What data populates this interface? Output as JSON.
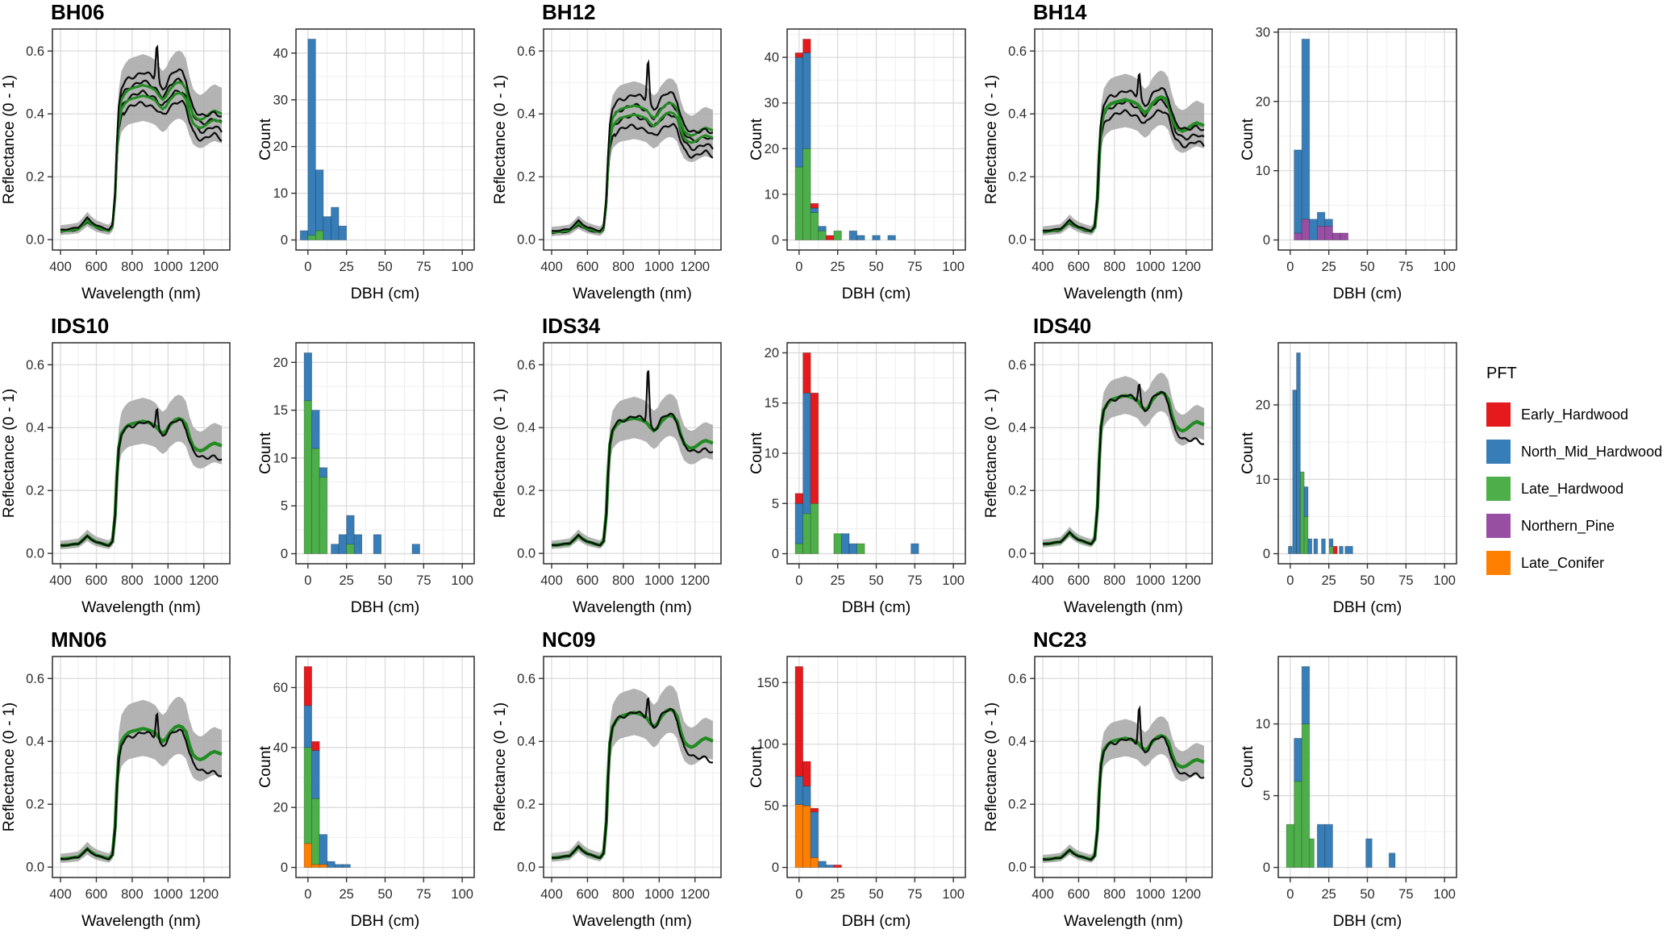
{
  "pft_legend": {
    "title": "PFT",
    "items": [
      {
        "key": "r",
        "label": "Early_Hardwood",
        "color": "#E41A1C"
      },
      {
        "key": "b",
        "label": "North_Mid_Hardwood",
        "color": "#377EB8"
      },
      {
        "key": "g",
        "label": "Late_Hardwood",
        "color": "#4DAF4A"
      },
      {
        "key": "p",
        "label": "Northern_Pine",
        "color": "#984EA3"
      },
      {
        "key": "o",
        "label": "Late_Conifer",
        "color": "#FF7F00"
      }
    ]
  },
  "axes": {
    "spectra": {
      "xlabel": "Wavelength (nm)",
      "ylabel": "Reflectance (0 - 1)",
      "xticks": [
        400,
        600,
        800,
        1000,
        1200
      ],
      "xminor": [
        500,
        700,
        900,
        1100,
        1300
      ],
      "yticks": [
        0.0,
        0.2,
        0.4,
        0.6
      ],
      "yminor": [
        0.1,
        0.3,
        0.5
      ],
      "xrange": [
        355,
        1345
      ],
      "yrange": [
        -0.033,
        0.67
      ]
    },
    "histogram": {
      "xlabel": "DBH (cm)",
      "ylabel": "Count",
      "xticks": [
        0,
        25,
        50,
        75,
        100
      ],
      "xminor": [
        12.5,
        37.5,
        62.5,
        87.5
      ],
      "xrange": [
        -7.75,
        107.75
      ]
    }
  },
  "spectra_base": {
    "wavelengths": [
      400,
      450,
      500,
      530,
      550,
      570,
      600,
      640,
      670,
      690,
      705,
      715,
      725,
      740,
      760,
      780,
      800,
      830,
      860,
      890,
      910,
      930,
      950,
      970,
      990,
      1010,
      1040,
      1060,
      1080,
      1100,
      1120,
      1140,
      1160,
      1180,
      1200,
      1220,
      1240,
      1260,
      1280,
      1300
    ],
    "gnorm": [
      0.06,
      0.066,
      0.075,
      0.11,
      0.135,
      0.112,
      0.088,
      0.072,
      0.062,
      0.09,
      0.3,
      0.6,
      0.82,
      0.93,
      0.97,
      0.995,
      1.005,
      1.015,
      1.025,
      1.015,
      1.005,
      0.99,
      0.955,
      0.93,
      0.95,
      0.995,
      1.035,
      1.045,
      1.035,
      1.0,
      0.9,
      0.83,
      0.805,
      0.795,
      0.805,
      0.825,
      0.845,
      0.855,
      0.845,
      0.835
    ]
  },
  "chart_data": [
    {
      "site": "BH06",
      "spectra": {
        "type": "line",
        "plateau": 0.47,
        "ribbon_frac": 0.2,
        "black_lines": [
          1.1,
          1.04,
          0.97,
          0.9
        ],
        "green_lines": [
          1.02,
          0.95
        ],
        "spike_nm": 938,
        "spike_peak": 0.63,
        "end_drop": 0.1
      },
      "histogram": {
        "type": "bar",
        "ymax": 43,
        "yticks": [
          0,
          10,
          20,
          30,
          40
        ],
        "bars": [
          {
            "c": -2.5,
            "b": 2
          },
          {
            "c": 2.5,
            "g": 1,
            "b": 42
          },
          {
            "c": 7.5,
            "g": 2,
            "b": 13
          },
          {
            "c": 12.5,
            "b": 5
          },
          {
            "c": 17.5,
            "b": 7
          },
          {
            "c": 22.5,
            "b": 3
          }
        ]
      }
    },
    {
      "site": "BH12",
      "spectra": {
        "type": "line",
        "plateau": 0.4,
        "ribbon_frac": 0.2,
        "black_lines": [
          1.12,
          1.04,
          0.96,
          0.88
        ],
        "green_lines": [
          1.04,
          0.97
        ],
        "spike_nm": 938,
        "spike_peak": 0.58,
        "end_drop": 0.1
      },
      "histogram": {
        "type": "bar",
        "ymax": 44,
        "yticks": [
          0,
          10,
          20,
          30,
          40
        ],
        "bars": [
          {
            "c": 0,
            "g": 16,
            "b": 24,
            "r": 1
          },
          {
            "c": 5,
            "g": 20,
            "b": 21,
            "r": 3
          },
          {
            "c": 10,
            "g": 6,
            "b": 1,
            "r": 1
          },
          {
            "c": 15,
            "g": 2,
            "b": 1
          },
          {
            "c": 20,
            "r": 1
          },
          {
            "c": 25,
            "g": 2
          },
          {
            "c": 35,
            "b": 2
          },
          {
            "c": 40,
            "b": 1
          },
          {
            "c": 50,
            "b": 1
          },
          {
            "c": 60,
            "b": 1
          }
        ]
      }
    },
    {
      "site": "BH14",
      "spectra": {
        "type": "line",
        "plateau": 0.43,
        "ribbon_frac": 0.17,
        "black_lines": [
          1.07,
          0.99,
          0.92
        ],
        "green_lines": [
          1.01
        ],
        "spike_nm": 938,
        "spike_peak": 0.54,
        "end_drop": 0.1
      },
      "histogram": {
        "type": "bar",
        "ymax": 29,
        "yticks": [
          0,
          10,
          20,
          30
        ],
        "bars": [
          {
            "c": 5,
            "p": 1,
            "b": 12
          },
          {
            "c": 10,
            "p": 3,
            "b": 26
          },
          {
            "c": 15,
            "b": 3
          },
          {
            "c": 20,
            "p": 2,
            "b": 2
          },
          {
            "c": 25,
            "p": 2,
            "b": 1
          },
          {
            "c": 30,
            "p": 1
          },
          {
            "c": 35,
            "p": 1
          }
        ]
      }
    },
    {
      "site": "IDS10",
      "spectra": {
        "type": "line",
        "plateau": 0.41,
        "ribbon_frac": 0.15,
        "black_lines": [
          0.99
        ],
        "green_lines": [
          1.0
        ],
        "spike_nm": 938,
        "spike_peak": 0.47,
        "end_drop": 0.13
      },
      "histogram": {
        "type": "bar",
        "ymax": 21,
        "yticks": [
          0,
          5,
          10,
          15,
          20
        ],
        "bars": [
          {
            "c": 0,
            "g": 16,
            "b": 5
          },
          {
            "c": 5,
            "g": 11,
            "b": 4
          },
          {
            "c": 10,
            "g": 8,
            "b": 1
          },
          {
            "c": 17.5,
            "b": 1
          },
          {
            "c": 22.5,
            "b": 2
          },
          {
            "c": 27.5,
            "g": 1,
            "b": 3
          },
          {
            "c": 32.5,
            "b": 2
          },
          {
            "c": 45,
            "b": 2
          },
          {
            "c": 70,
            "b": 1
          }
        ]
      }
    },
    {
      "site": "IDS34",
      "spectra": {
        "type": "line",
        "plateau": 0.42,
        "ribbon_frac": 0.13,
        "black_lines": [
          1.01
        ],
        "green_lines": [
          1.0
        ],
        "spike_nm": 938,
        "spike_peak": 0.6,
        "end_drop": 0.1
      },
      "histogram": {
        "type": "bar",
        "ymax": 20,
        "yticks": [
          0,
          5,
          10,
          15,
          20
        ],
        "bars": [
          {
            "c": 0,
            "g": 1,
            "b": 4,
            "r": 1
          },
          {
            "c": 5,
            "g": 4,
            "b": 12,
            "r": 4
          },
          {
            "c": 10,
            "g": 5,
            "r": 11
          },
          {
            "c": 25,
            "g": 2
          },
          {
            "c": 30,
            "b": 2
          },
          {
            "c": 35,
            "b": 1
          },
          {
            "c": 40,
            "g": 1
          },
          {
            "c": 75,
            "b": 1
          }
        ]
      }
    },
    {
      "site": "IDS40",
      "spectra": {
        "type": "line",
        "plateau": 0.49,
        "ribbon_frac": 0.1,
        "black_lines": [
          1.0
        ],
        "green_lines": [
          1.0
        ],
        "spike_nm": 938,
        "spike_peak": 0.55,
        "end_drop": 0.16
      },
      "histogram": {
        "type": "bar",
        "ymax": 27,
        "yticks": [
          0,
          10,
          20
        ],
        "bars": [
          {
            "c": 0,
            "w": 2.5,
            "b": 1
          },
          {
            "c": 2.8,
            "w": 2.5,
            "b": 22
          },
          {
            "c": 5.3,
            "w": 2.5,
            "b": 27
          },
          {
            "c": 7.8,
            "w": 2.5,
            "g": 11
          },
          {
            "c": 10.3,
            "w": 2.5,
            "g": 5,
            "b": 4
          },
          {
            "c": 12.8,
            "w": 2.5,
            "b": 2
          },
          {
            "c": 16.5,
            "w": 2.5,
            "b": 2
          },
          {
            "c": 21.5,
            "w": 2.5,
            "b": 2
          },
          {
            "c": 26.5,
            "w": 2.5,
            "g": 1,
            "b": 1
          },
          {
            "c": 29.2,
            "w": 2.5,
            "r": 1
          },
          {
            "c": 33,
            "w": 2.5,
            "b": 1
          },
          {
            "c": 38,
            "w": 5,
            "b": 1
          }
        ]
      }
    },
    {
      "site": "MN06",
      "spectra": {
        "type": "line",
        "plateau": 0.43,
        "ribbon_frac": 0.18,
        "black_lines": [
          0.97
        ],
        "green_lines": [
          1.0
        ],
        "spike_nm": 938,
        "spike_peak": 0.5,
        "end_drop": 0.18
      },
      "histogram": {
        "type": "bar",
        "ymax": 67,
        "yticks": [
          0,
          20,
          40,
          60
        ],
        "bars": [
          {
            "c": 0,
            "o": 8,
            "g": 32,
            "b": 14,
            "r": 13
          },
          {
            "c": 5,
            "o": 1,
            "g": 22,
            "b": 16,
            "r": 3
          },
          {
            "c": 10,
            "o": 1,
            "b": 10
          },
          {
            "c": 15,
            "b": 2
          },
          {
            "c": 20,
            "b": 1
          },
          {
            "c": 25,
            "b": 1
          }
        ]
      }
    },
    {
      "site": "NC09",
      "spectra": {
        "type": "line",
        "plateau": 0.48,
        "ribbon_frac": 0.13,
        "black_lines": [
          1.0
        ],
        "green_lines": [
          1.0
        ],
        "spike_nm": 938,
        "spike_peak": 0.55,
        "end_drop": 0.18
      },
      "histogram": {
        "type": "bar",
        "ymax": 163,
        "yticks": [
          0,
          50,
          100,
          150
        ],
        "bars": [
          {
            "c": 0,
            "o": 51,
            "b": 23,
            "r": 89
          },
          {
            "c": 5,
            "o": 50,
            "b": 16,
            "r": 20
          },
          {
            "c": 10,
            "o": 8,
            "b": 37,
            "r": 3
          },
          {
            "c": 15,
            "b": 5
          },
          {
            "c": 20,
            "b": 2
          },
          {
            "c": 25,
            "r": 2
          }
        ]
      }
    },
    {
      "site": "NC23",
      "spectra": {
        "type": "line",
        "plateau": 0.4,
        "ribbon_frac": 0.12,
        "black_lines": [
          0.99
        ],
        "green_lines": [
          1.0
        ],
        "spike_nm": 938,
        "spike_peak": 0.52,
        "end_drop": 0.15
      },
      "histogram": {
        "type": "bar",
        "ymax": 14,
        "yticks": [
          0,
          5,
          10
        ],
        "bars": [
          {
            "c": 0,
            "g": 3
          },
          {
            "c": 5,
            "g": 6,
            "b": 3
          },
          {
            "c": 10,
            "g": 10,
            "b": 4
          },
          {
            "c": 14,
            "w": 3,
            "g": 2
          },
          {
            "c": 20,
            "b": 3
          },
          {
            "c": 25,
            "b": 3
          },
          {
            "c": 51,
            "w": 4,
            "b": 2
          },
          {
            "c": 66,
            "w": 4,
            "b": 1
          }
        ]
      }
    }
  ],
  "style": {
    "ribbon_color": "#ABABAB",
    "green_line_color": "#228B22",
    "black_line_color": "#0b0b0b",
    "grid_major": "#DCDCDC",
    "grid_minor": "#F0F0F0",
    "panel_border": "#2b2b2b"
  }
}
